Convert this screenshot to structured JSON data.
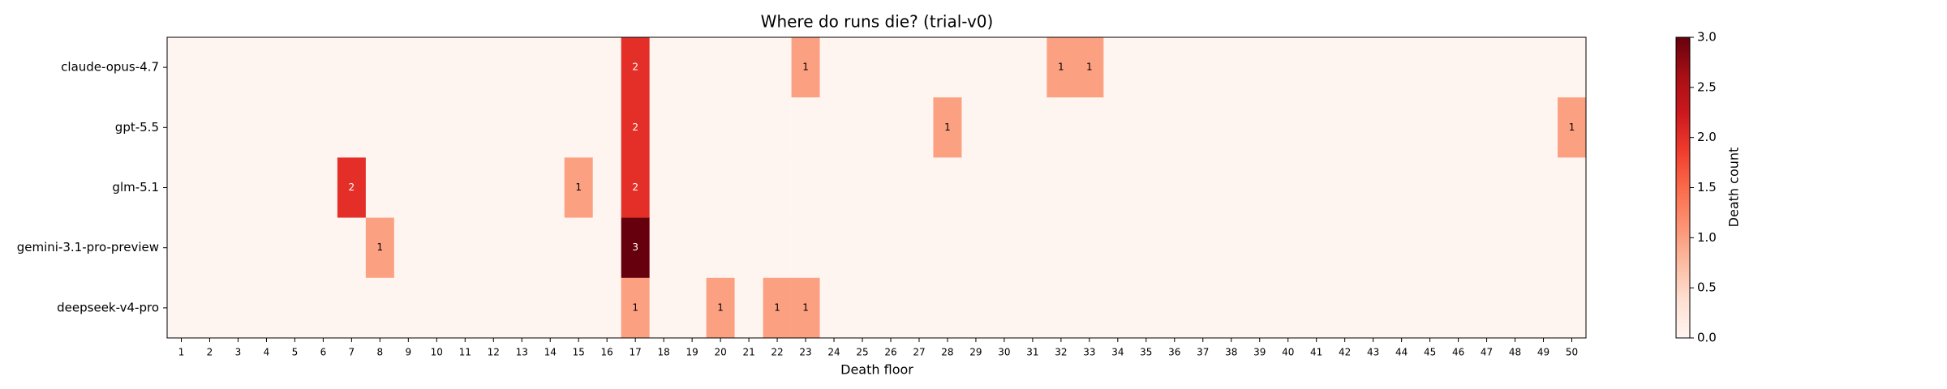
{
  "chart_data": {
    "type": "heatmap",
    "title": "Where do runs die? (trial-v0)",
    "x_label": "Death floor",
    "x": [
      1,
      2,
      3,
      4,
      5,
      6,
      7,
      8,
      9,
      10,
      11,
      12,
      13,
      14,
      15,
      16,
      17,
      18,
      19,
      20,
      21,
      22,
      23,
      24,
      25,
      26,
      27,
      28,
      29,
      30,
      31,
      32,
      33,
      34,
      35,
      36,
      37,
      38,
      39,
      40,
      41,
      42,
      43,
      44,
      45,
      46,
      47,
      48,
      49,
      50
    ],
    "categories": [
      "claude-opus-4.7",
      "gpt-5.5",
      "glm-5.1",
      "gemini-3.1-pro-preview",
      "deepseek-v4-pro"
    ],
    "matrix": [
      [
        0,
        0,
        0,
        0,
        0,
        0,
        0,
        0,
        0,
        0,
        0,
        0,
        0,
        0,
        0,
        0,
        2,
        0,
        0,
        0,
        0,
        0,
        1,
        0,
        0,
        0,
        0,
        0,
        0,
        0,
        0,
        1,
        1,
        0,
        0,
        0,
        0,
        0,
        0,
        0,
        0,
        0,
        0,
        0,
        0,
        0,
        0,
        0,
        0,
        0
      ],
      [
        0,
        0,
        0,
        0,
        0,
        0,
        0,
        0,
        0,
        0,
        0,
        0,
        0,
        0,
        0,
        0,
        2,
        0,
        0,
        0,
        0,
        0,
        0,
        0,
        0,
        0,
        0,
        1,
        0,
        0,
        0,
        0,
        0,
        0,
        0,
        0,
        0,
        0,
        0,
        0,
        0,
        0,
        0,
        0,
        0,
        0,
        0,
        0,
        0,
        1
      ],
      [
        0,
        0,
        0,
        0,
        0,
        0,
        2,
        0,
        0,
        0,
        0,
        0,
        0,
        0,
        1,
        0,
        2,
        0,
        0,
        0,
        0,
        0,
        0,
        0,
        0,
        0,
        0,
        0,
        0,
        0,
        0,
        0,
        0,
        0,
        0,
        0,
        0,
        0,
        0,
        0,
        0,
        0,
        0,
        0,
        0,
        0,
        0,
        0,
        0,
        0
      ],
      [
        0,
        0,
        0,
        0,
        0,
        0,
        0,
        1,
        0,
        0,
        0,
        0,
        0,
        0,
        0,
        0,
        3,
        0,
        0,
        0,
        0,
        0,
        0,
        0,
        0,
        0,
        0,
        0,
        0,
        0,
        0,
        0,
        0,
        0,
        0,
        0,
        0,
        0,
        0,
        0,
        0,
        0,
        0,
        0,
        0,
        0,
        0,
        0,
        0,
        0
      ],
      [
        0,
        0,
        0,
        0,
        0,
        0,
        0,
        0,
        0,
        0,
        0,
        0,
        0,
        0,
        0,
        0,
        1,
        0,
        0,
        1,
        0,
        1,
        1,
        0,
        0,
        0,
        0,
        0,
        0,
        0,
        0,
        0,
        0,
        0,
        0,
        0,
        0,
        0,
        0,
        0,
        0,
        0,
        0,
        0,
        0,
        0,
        0,
        0,
        0,
        0
      ]
    ],
    "colormap": "Reds",
    "clim": [
      0,
      3
    ],
    "cticks": [
      {
        "value": 0,
        "label": "0.0"
      },
      {
        "value": 0.5,
        "label": "0.5"
      },
      {
        "value": 1,
        "label": "1.0"
      },
      {
        "value": 1.5,
        "label": "1.5"
      },
      {
        "value": 2,
        "label": "2.0"
      },
      {
        "value": 2.5,
        "label": "2.5"
      },
      {
        "value": 3,
        "label": "3.0"
      }
    ],
    "colorbar_label": "Death count"
  }
}
